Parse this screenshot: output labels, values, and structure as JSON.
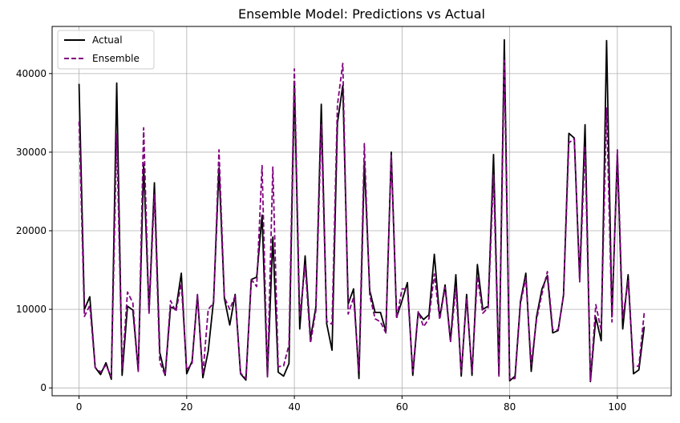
{
  "chart_data": {
    "type": "line",
    "title": "Ensemble Model: Predictions vs Actual",
    "xlabel": "",
    "ylabel": "",
    "xlim": [
      -5,
      110
    ],
    "ylim": [
      -1000,
      46000
    ],
    "x_ticks": [
      0,
      20,
      40,
      60,
      80,
      100
    ],
    "y_ticks": [
      0,
      10000,
      20000,
      30000,
      40000
    ],
    "grid": true,
    "legend_position": "top-left",
    "series": [
      {
        "name": "Actual",
        "color": "#000000",
        "dash": "solid",
        "values": [
          38700,
          10000,
          11600,
          2600,
          1700,
          3200,
          1100,
          38800,
          1600,
          10400,
          9900,
          2200,
          28500,
          9700,
          26100,
          4500,
          1600,
          10300,
          10000,
          14600,
          1800,
          3400,
          11800,
          1300,
          4700,
          11200,
          28000,
          11400,
          8000,
          11900,
          1800,
          1000,
          13800,
          14100,
          22000,
          1500,
          19200,
          2000,
          1500,
          3100,
          39000,
          7500,
          16800,
          6300,
          10300,
          36100,
          8200,
          4800,
          33700,
          38500,
          10700,
          12600,
          1200,
          28700,
          12400,
          9600,
          9600,
          7200,
          30000,
          9000,
          11100,
          13400,
          1600,
          9600,
          8700,
          9300,
          17000,
          8900,
          13100,
          6000,
          14400,
          1500,
          11900,
          1600,
          15700,
          10000,
          10400,
          29700,
          1700,
          44300,
          900,
          1500,
          11000,
          14600,
          2100,
          9100,
          12600,
          14300,
          7000,
          7300,
          11800,
          32400,
          31800,
          13900,
          33500,
          800,
          9000,
          6000,
          44200,
          9100,
          29700,
          7500,
          14400,
          1800,
          2300,
          7800
        ]
      },
      {
        "name": "Ensemble",
        "color": "#800080",
        "dash": "dashed",
        "values": [
          33900,
          9100,
          10500,
          2600,
          2000,
          2900,
          1400,
          32300,
          2400,
          12200,
          10800,
          2100,
          33100,
          9500,
          24600,
          3300,
          1600,
          11100,
          9700,
          13300,
          2300,
          3100,
          11900,
          1700,
          10000,
          10800,
          30300,
          11500,
          10000,
          11700,
          1900,
          1200,
          13800,
          12900,
          28300,
          1400,
          28100,
          2700,
          2800,
          5500,
          40600,
          9000,
          15600,
          5700,
          9900,
          33500,
          8500,
          8100,
          36000,
          41300,
          9400,
          11500,
          2100,
          31100,
          11800,
          8800,
          8400,
          7000,
          29600,
          8800,
          12600,
          12600,
          2100,
          9700,
          7800,
          8800,
          14500,
          8700,
          12800,
          5800,
          12800,
          2000,
          11300,
          2100,
          14200,
          9500,
          10200,
          27100,
          1500,
          41700,
          1100,
          1200,
          10700,
          14000,
          3000,
          8700,
          12000,
          14800,
          7400,
          7400,
          11700,
          31200,
          31700,
          13500,
          30800,
          900,
          10600,
          7300,
          35600,
          8400,
          30300,
          8900,
          13600,
          2700,
          2800,
          9600
        ]
      }
    ]
  }
}
